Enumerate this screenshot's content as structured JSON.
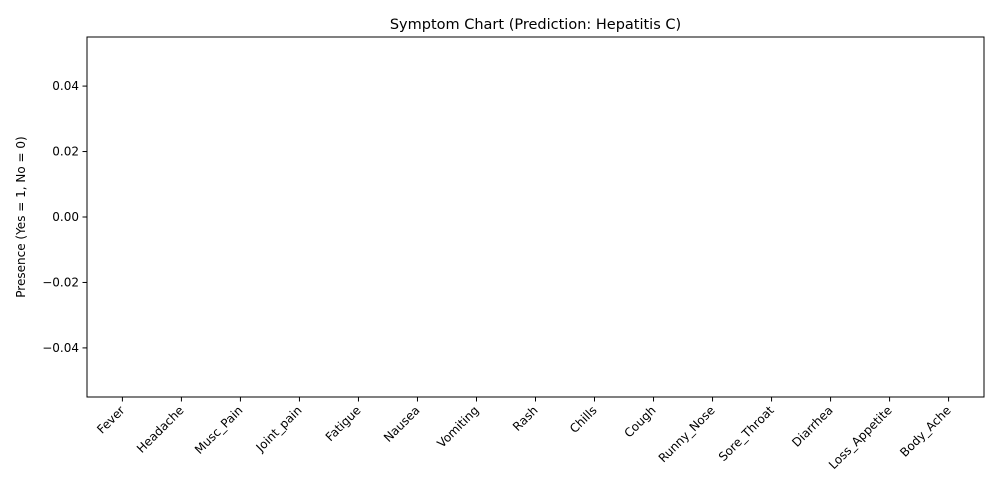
{
  "chart_data": {
    "type": "bar",
    "title": "Symptom Chart (Prediction: Hepatitis C)",
    "xlabel": "",
    "ylabel": "Presence (Yes = 1, No = 0)",
    "categories": [
      "Fever",
      "Headache",
      "Musc_Pain",
      "Joint_pain",
      "Fatigue",
      "Nausea",
      "Vomiting",
      "Rash",
      "Chills",
      "Cough",
      "Runny_Nose",
      "Sore_Throat",
      "Diarrhea",
      "Loss_Appetite",
      "Body_Ache"
    ],
    "values": [
      0,
      0,
      0,
      0,
      0,
      0,
      0,
      0,
      0,
      0,
      0,
      0,
      0,
      0,
      0
    ],
    "ylim": [
      -0.055,
      0.055
    ],
    "yticks": [
      0.04,
      0.02,
      0.0,
      -0.02,
      -0.04
    ],
    "ytick_labels": [
      "0.04",
      "0.02",
      "0.00",
      "−0.02",
      "−0.04"
    ],
    "grid": false,
    "bar_color": "#1f77b4"
  }
}
